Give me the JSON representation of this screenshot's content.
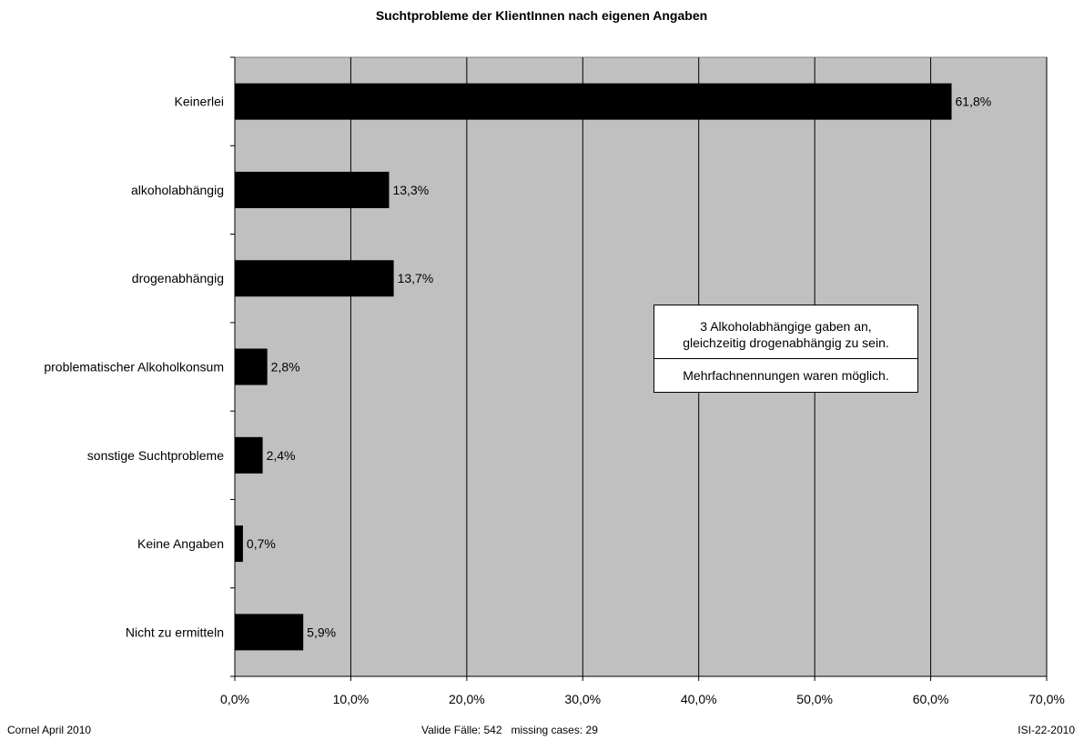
{
  "chart_data": {
    "type": "bar",
    "orientation": "horizontal",
    "title": "Suchtprobleme der KlientInnen nach eigenen Angaben",
    "categories": [
      "Keinerlei",
      "alkoholabhängig",
      "drogenabhängig",
      "problematischer Alkoholkonsum",
      "sonstige Suchtprobleme",
      "Keine Angaben",
      "Nicht zu ermitteln"
    ],
    "values": [
      61.8,
      13.3,
      13.7,
      2.8,
      2.4,
      0.7,
      5.9
    ],
    "data_labels": [
      "61,8%",
      "13,3%",
      "13,7%",
      "2,8%",
      "2,4%",
      "0,7%",
      "5,9%"
    ],
    "xlim": [
      0,
      70
    ],
    "x_ticks": [
      0,
      10,
      20,
      30,
      40,
      50,
      60,
      70
    ],
    "x_tick_labels": [
      "0,0%",
      "10,0%",
      "20,0%",
      "30,0%",
      "40,0%",
      "50,0%",
      "60,0%",
      "70,0%"
    ],
    "grid": true,
    "colors": {
      "bar": "#000000",
      "plot_background": "#c0c0c0",
      "gridline": "#000000"
    }
  },
  "annotation": {
    "line1": "3 Alkoholabhängige gaben an,",
    "line2": "gleichzeitig drogenabhängig zu sein.",
    "line3": "Mehrfachnennungen waren möglich."
  },
  "footer": {
    "left": "Cornel April 2010",
    "center": "Valide Fälle: 542   missing cases: 29",
    "right": "ISI-22-2010"
  }
}
